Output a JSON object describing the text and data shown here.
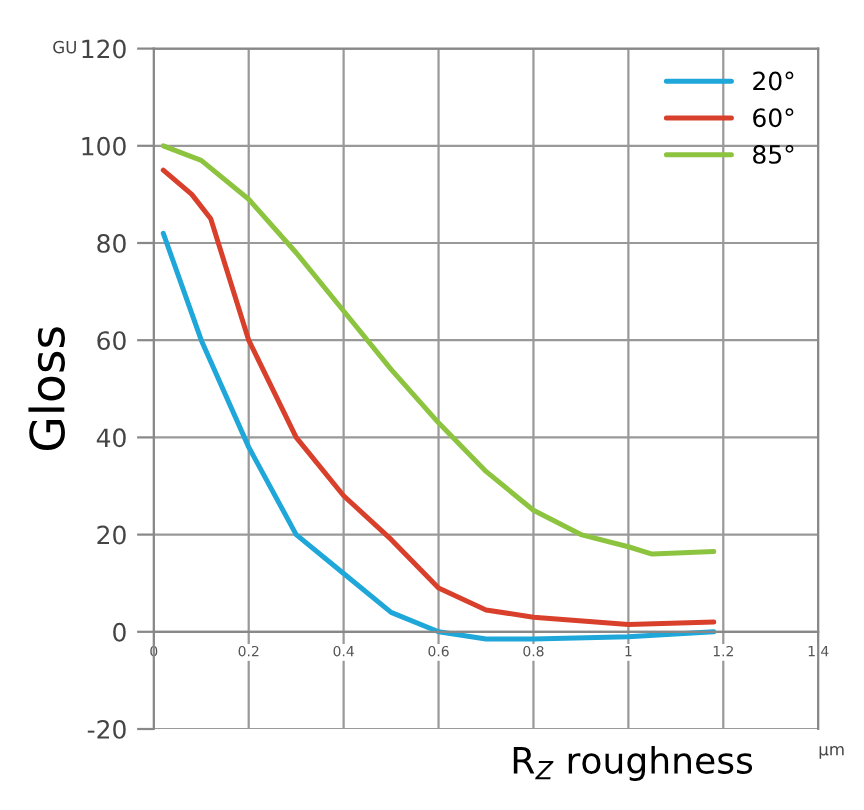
{
  "chart_data": {
    "type": "line",
    "xlabel": "R$_{Z}$ roughness",
    "ylabel": "Gloss",
    "annotations": [
      "GU",
      "µm"
    ],
    "xlim": [
      0,
      1.4
    ],
    "ylim": [
      -20,
      120
    ],
    "xticks": [
      0,
      0.2,
      0.4,
      0.6,
      0.8,
      1,
      1.2,
      1.4
    ],
    "yticks": [
      -20,
      0,
      20,
      40,
      60,
      80,
      100,
      120
    ],
    "grid": true,
    "legend": "top right",
    "line_style": "solid",
    "marker": "none",
    "series": [
      {
        "name": "20°",
        "color": "#1ea7d8",
        "x": [
          0.02,
          0.1,
          0.2,
          0.3,
          0.4,
          0.5,
          0.6,
          0.7,
          0.8,
          1.0,
          1.18
        ],
        "values": [
          82,
          60,
          38,
          20,
          12,
          4,
          0,
          -1.5,
          -1.5,
          -1,
          0
        ]
      },
      {
        "name": "60°",
        "color": "#d9402b",
        "x": [
          0.02,
          0.08,
          0.12,
          0.2,
          0.3,
          0.4,
          0.5,
          0.6,
          0.7,
          0.8,
          1.0,
          1.18
        ],
        "values": [
          95,
          90,
          85,
          60,
          40,
          28,
          19,
          9,
          4.5,
          3,
          1.5,
          2
        ]
      },
      {
        "name": "85°",
        "color": "#8dc43f",
        "x": [
          0.02,
          0.1,
          0.2,
          0.3,
          0.4,
          0.5,
          0.6,
          0.7,
          0.8,
          0.9,
          1.0,
          1.05,
          1.18
        ],
        "values": [
          100,
          97,
          89,
          78,
          66,
          54,
          43,
          33,
          25,
          20,
          17.5,
          16,
          16.5
        ]
      }
    ]
  }
}
